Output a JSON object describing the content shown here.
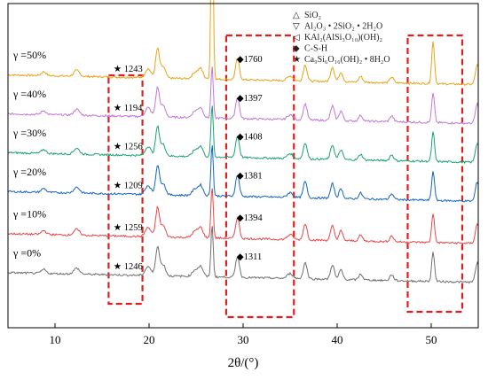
{
  "chart_data": {
    "type": "line",
    "xlabel": "2θ/(°)",
    "ylabel": "",
    "xlim": [
      5,
      55
    ],
    "xticks": [
      10,
      20,
      30,
      40,
      50
    ],
    "grid": false,
    "legend_placement": "top-right",
    "legend": [
      {
        "symbol": "△",
        "text": "SiO₂"
      },
      {
        "symbol": "▽",
        "text": "Al₂O₃ • 2SiO₂ • 2H₂O"
      },
      {
        "symbol": "◁",
        "text": "KAl₂(AlSi₃O₁₀)(OH)₂"
      },
      {
        "symbol": "◆",
        "text": "C-S-H"
      },
      {
        "symbol": "★",
        "text": "Ca₉Si₆O₁₆(OH)₂ • 8H₂O"
      }
    ],
    "series": [
      {
        "name": "γ =50%",
        "color": "#E8A317",
        "baseline": 0.78,
        "annotation_1": "1243",
        "annotation_2": "1760"
      },
      {
        "name": "γ =40%",
        "color": "#C277D6",
        "baseline": 0.66,
        "annotation_1": "1194",
        "annotation_2": "1397"
      },
      {
        "name": "γ =30%",
        "color": "#1BA36E",
        "baseline": 0.54,
        "annotation_1": "1256",
        "annotation_2": "1408"
      },
      {
        "name": "γ =20%",
        "color": "#1565C0",
        "baseline": 0.42,
        "annotation_1": "1209",
        "annotation_2": "1381"
      },
      {
        "name": "γ =10%",
        "color": "#E8474A",
        "baseline": 0.29,
        "annotation_1": "1259",
        "annotation_2": "1394"
      },
      {
        "name": "γ =0%",
        "color": "#707070",
        "baseline": 0.17,
        "annotation_1": "1246",
        "annotation_2": "1311"
      }
    ],
    "peaks": [
      {
        "x": 8.8,
        "h": 0.012,
        "w": 0.25
      },
      {
        "x": 12.3,
        "h": 0.018,
        "w": 0.3
      },
      {
        "x": 19.9,
        "h": 0.028,
        "w": 0.3
      },
      {
        "x": 20.9,
        "h": 0.09,
        "w": 0.2
      },
      {
        "x": 21.5,
        "h": 0.035,
        "w": 0.25
      },
      {
        "x": 24.9,
        "h": 0.02,
        "w": 0.3
      },
      {
        "x": 25.5,
        "h": 0.03,
        "w": 0.25
      },
      {
        "x": 26.7,
        "h": 0.55,
        "w": 0.12
      },
      {
        "x": 29.4,
        "h": 0.065,
        "w": 0.2
      },
      {
        "x": 35.0,
        "h": 0.015,
        "w": 0.3
      },
      {
        "x": 36.6,
        "h": 0.05,
        "w": 0.2
      },
      {
        "x": 39.5,
        "h": 0.045,
        "w": 0.2
      },
      {
        "x": 40.4,
        "h": 0.03,
        "w": 0.2
      },
      {
        "x": 42.5,
        "h": 0.018,
        "w": 0.2
      },
      {
        "x": 45.8,
        "h": 0.018,
        "w": 0.2
      },
      {
        "x": 50.2,
        "h": 0.09,
        "w": 0.15
      },
      {
        "x": 54.9,
        "h": 0.06,
        "w": 0.2
      }
    ],
    "highlight_ranges": [
      [
        15.7,
        19.3
      ],
      [
        28.2,
        35.4
      ],
      [
        47.5,
        53.3
      ]
    ]
  }
}
